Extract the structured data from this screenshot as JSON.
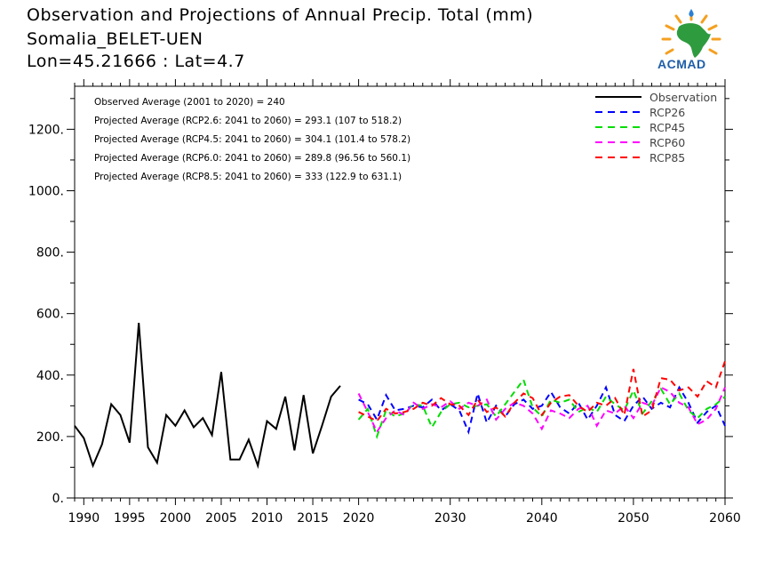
{
  "header": {
    "title": "Observation and Projections of Annual Precip. Total (mm)",
    "station": "Somalia_BELET-UEN",
    "coords": "Lon=45.21666 : Lat=4.7"
  },
  "logo": {
    "text": "ACMAD"
  },
  "colors": {
    "observation": "#000000",
    "RCP26": "#0000ff",
    "RCP45": "#00dd00",
    "RCP60": "#ff00ff",
    "RCP85": "#ff0000"
  },
  "chart_data": {
    "type": "line",
    "title": "Observation and Projections of Annual Precip. Total (mm)",
    "xlim": [
      1989,
      2060
    ],
    "ylim": [
      0,
      1340
    ],
    "x_ticks": [
      "1990",
      "1995",
      "2000",
      "2005",
      "2010",
      "2015",
      "2020",
      "2030",
      "2040",
      "2050",
      "2060"
    ],
    "y_ticks": [
      "0.",
      "200.",
      "400.",
      "600.",
      "800.",
      "1000.",
      "1200."
    ],
    "annotations": [
      "Observed Average (2001 to 2020) = 240",
      "Projected Average (RCP2.6: 2041 to 2060) = 293.1 (107 to 518.2)",
      "Projected Average (RCP4.5: 2041 to 2060) = 304.1 (101.4 to 578.2)",
      "Projected Average (RCP6.0: 2041 to 2060) = 289.8 (96.56 to 560.1)",
      "Projected Average (RCP8.5: 2041 to 2060) = 333 (122.9 to 631.1)"
    ],
    "legend": {
      "position": "top-right",
      "entries": [
        "Observation",
        "RCP26",
        "RCP45",
        "RCP60",
        "RCP85"
      ]
    },
    "series": [
      {
        "name": "Observation",
        "style": "solid",
        "x": [
          1989,
          1990,
          1991,
          1992,
          1993,
          1994,
          1995,
          1996,
          1997,
          1998,
          1999,
          2000,
          2001,
          2002,
          2003,
          2004,
          2005,
          2006,
          2007,
          2008,
          2009,
          2010,
          2011,
          2012,
          2013,
          2014,
          2015,
          2016,
          2017,
          2018,
          2019,
          2020
        ],
        "values": [
          235,
          195,
          105,
          175,
          305,
          270,
          180,
          570,
          165,
          115,
          270,
          235,
          285,
          230,
          260,
          205,
          410,
          125,
          125,
          190,
          105,
          250,
          225,
          330,
          155,
          335,
          145,
          235,
          330,
          365,
          null,
          null
        ]
      },
      {
        "name": "RCP26",
        "style": "dashed",
        "x": [
          2020,
          2021,
          2022,
          2023,
          2024,
          2025,
          2026,
          2027,
          2028,
          2029,
          2030,
          2031,
          2032,
          2033,
          2034,
          2035,
          2036,
          2037,
          2038,
          2039,
          2040,
          2041,
          2042,
          2043,
          2044,
          2045,
          2046,
          2047,
          2048,
          2049,
          2050,
          2051,
          2052,
          2053,
          2054,
          2055,
          2056,
          2057,
          2058,
          2059,
          2060
        ],
        "values": [
          320,
          305,
          255,
          335,
          285,
          290,
          300,
          295,
          320,
          285,
          305,
          285,
          215,
          340,
          245,
          300,
          265,
          305,
          320,
          290,
          300,
          345,
          295,
          275,
          310,
          255,
          300,
          360,
          270,
          250,
          300,
          330,
          290,
          310,
          295,
          360,
          310,
          245,
          280,
          300,
          235
        ]
      },
      {
        "name": "RCP45",
        "style": "dashed",
        "x": [
          2020,
          2021,
          2022,
          2023,
          2024,
          2025,
          2026,
          2027,
          2028,
          2029,
          2030,
          2031,
          2032,
          2033,
          2034,
          2035,
          2036,
          2037,
          2038,
          2039,
          2040,
          2041,
          2042,
          2043,
          2044,
          2045,
          2046,
          2047,
          2048,
          2049,
          2050,
          2051,
          2052,
          2053,
          2054,
          2055,
          2056,
          2057,
          2058,
          2059,
          2060
        ],
        "values": [
          255,
          290,
          200,
          285,
          265,
          275,
          305,
          300,
          230,
          280,
          305,
          310,
          295,
          300,
          305,
          265,
          305,
          345,
          385,
          295,
          265,
          320,
          310,
          320,
          280,
          295,
          280,
          330,
          305,
          285,
          350,
          275,
          315,
          355,
          305,
          340,
          285,
          260,
          290,
          305,
          330
        ]
      },
      {
        "name": "RCP60",
        "style": "dashed",
        "x": [
          2020,
          2021,
          2022,
          2023,
          2024,
          2025,
          2026,
          2027,
          2028,
          2029,
          2030,
          2031,
          2032,
          2033,
          2034,
          2035,
          2036,
          2037,
          2038,
          2039,
          2040,
          2041,
          2042,
          2043,
          2044,
          2045,
          2046,
          2047,
          2048,
          2049,
          2050,
          2051,
          2052,
          2053,
          2054,
          2055,
          2056,
          2057,
          2058,
          2059,
          2060
        ],
        "values": [
          340,
          280,
          215,
          260,
          285,
          270,
          310,
          290,
          305,
          295,
          315,
          290,
          310,
          300,
          320,
          255,
          290,
          310,
          300,
          275,
          225,
          285,
          275,
          260,
          290,
          300,
          235,
          285,
          275,
          300,
          260,
          310,
          300,
          360,
          345,
          310,
          295,
          240,
          255,
          290,
          360
        ]
      },
      {
        "name": "RCP85",
        "style": "dashed",
        "x": [
          2020,
          2021,
          2022,
          2023,
          2024,
          2025,
          2026,
          2027,
          2028,
          2029,
          2030,
          2031,
          2032,
          2033,
          2034,
          2035,
          2036,
          2037,
          2038,
          2039,
          2040,
          2041,
          2042,
          2043,
          2044,
          2045,
          2046,
          2047,
          2048,
          2049,
          2050,
          2051,
          2052,
          2053,
          2054,
          2055,
          2056,
          2057,
          2058,
          2059,
          2060
        ],
        "values": [
          280,
          265,
          250,
          290,
          275,
          280,
          290,
          310,
          300,
          325,
          305,
          300,
          270,
          320,
          280,
          295,
          265,
          310,
          340,
          325,
          270,
          310,
          330,
          335,
          300,
          280,
          310,
          300,
          325,
          270,
          420,
          265,
          285,
          390,
          385,
          350,
          360,
          330,
          380,
          360,
          445
        ]
      }
    ]
  }
}
